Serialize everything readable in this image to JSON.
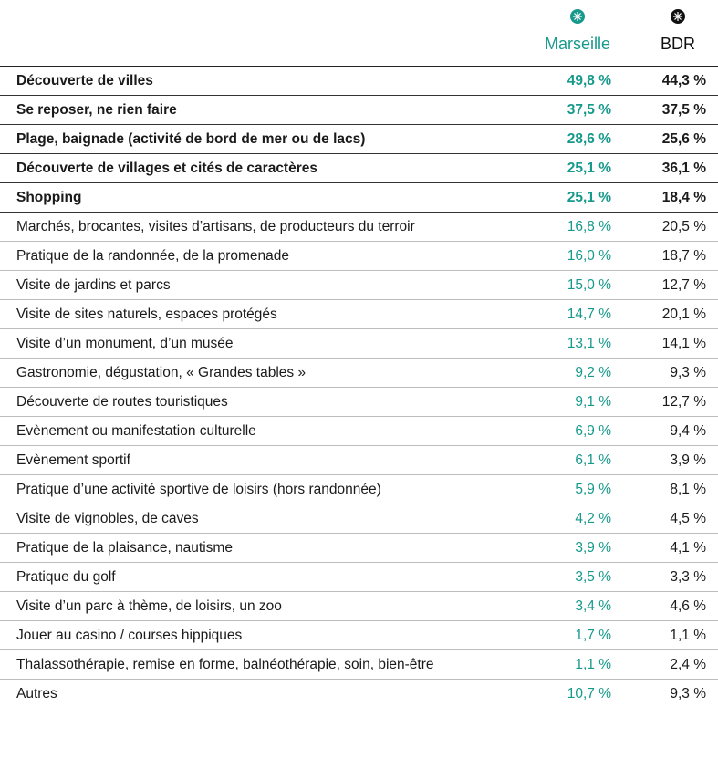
{
  "table": {
    "columns": [
      "Marseille",
      "BDR"
    ],
    "rows": [
      [
        "Découverte de villes",
        "49,8 %",
        "44,3 %"
      ],
      [
        "Se reposer, ne rien faire",
        "37,5 %",
        "37,5 %"
      ],
      [
        "Plage, baignade (activité de bord de mer ou de lacs)",
        "28,6 %",
        "25,6 %"
      ],
      [
        "Découverte de villages et cités de caractères",
        "25,1 %",
        "36,1 %"
      ],
      [
        "Shopping",
        "25,1 %",
        "18,4 %"
      ],
      [
        "Marchés, brocantes, visites d’artisans, de producteurs du terroir",
        "16,8 %",
        "20,5 %"
      ],
      [
        "Pratique de la randonnée, de la promenade",
        "16,0 %",
        "18,7 %"
      ],
      [
        "Visite de jardins et parcs",
        "15,0 %",
        "12,7 %"
      ],
      [
        "Visite de sites naturels, espaces protégés",
        "14,7 %",
        "20,1 %"
      ],
      [
        "Visite d’un monument, d’un musée",
        "13,1 %",
        "14,1 %"
      ],
      [
        "Gastronomie, dégustation, « Grandes tables »",
        "9,2 %",
        "9,3 %"
      ],
      [
        "Découverte de routes touristiques",
        "9,1 %",
        "12,7 %"
      ],
      [
        "Evènement ou manifestation culturelle",
        "6,9 %",
        "9,4 %"
      ],
      [
        "Evènement sportif",
        "6,1 %",
        "3,9 %"
      ],
      [
        "Pratique d’une activité sportive de loisirs (hors randonnée)",
        "5,9 %",
        "8,1 %"
      ],
      [
        "Visite de vignobles, de caves",
        "4,2 %",
        "4,5 %"
      ],
      [
        "Pratique de la plaisance, nautisme",
        "3,9 %",
        "4,1 %"
      ],
      [
        "Pratique du golf",
        "3,5 %",
        "3,3 %"
      ],
      [
        "Visite d’un parc à thème, de loisirs, un zoo",
        "3,4 %",
        "4,6 %"
      ],
      [
        "Jouer au casino / courses hippiques",
        "1,7 %",
        "1,1 %"
      ],
      [
        "Thalassothérapie, remise en forme, balnéothérapie, soin, bien-être",
        "1,1 %",
        "2,4 %"
      ],
      [
        "Autres",
        "10,7 %",
        "9,3 %"
      ]
    ]
  }
}
